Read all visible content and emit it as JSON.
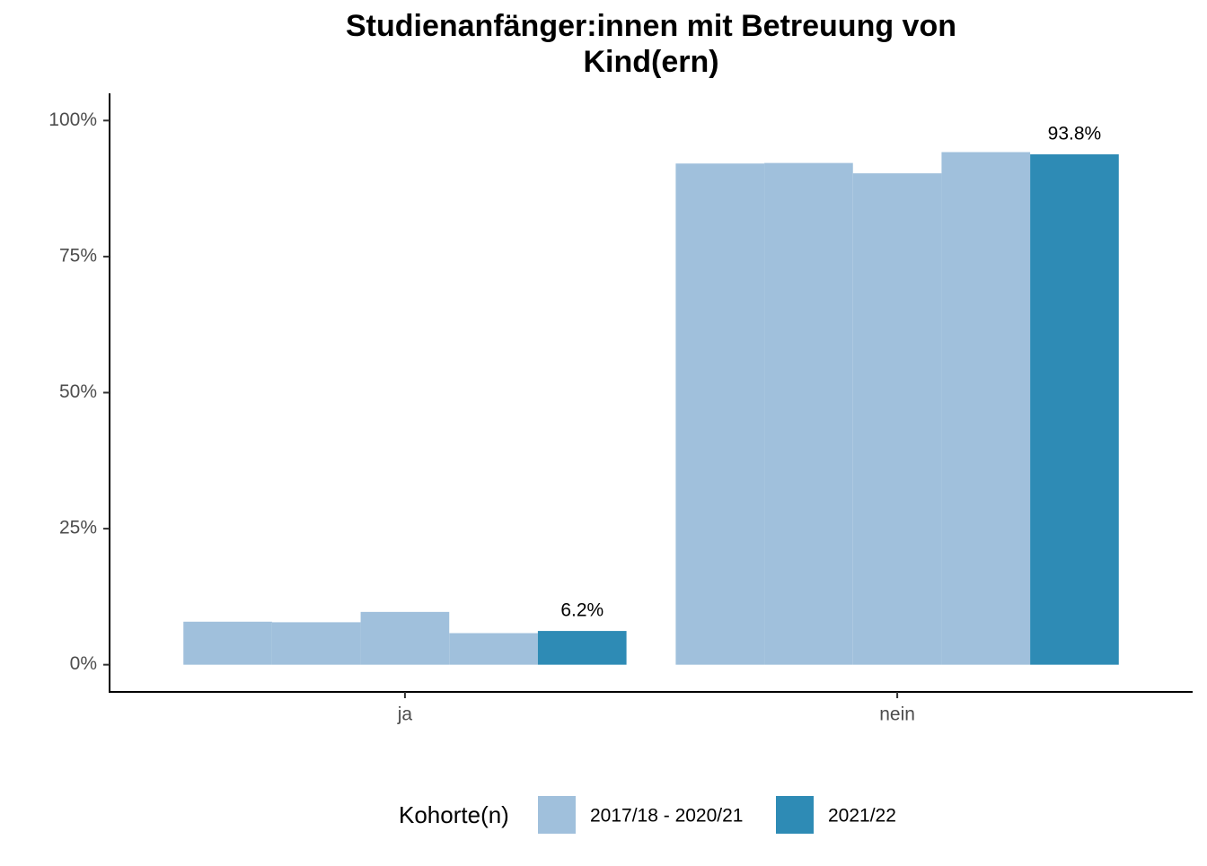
{
  "chart_data": {
    "type": "bar",
    "title": [
      "Studienanfänger:innen mit Betreuung von",
      "Kind(ern)"
    ],
    "categories": [
      "ja",
      "nein"
    ],
    "series": [
      {
        "name": "2017/18 - 2020/21",
        "color": "#a0c0dc",
        "values": [
          [
            7.9,
            7.8,
            9.7,
            5.8
          ],
          [
            92.1,
            92.2,
            90.3,
            94.2
          ]
        ]
      },
      {
        "name": "2021/22",
        "color": "#2e8bb5",
        "values": [
          6.2,
          93.8
        ],
        "value_labels": [
          "6.2%",
          "93.8%"
        ]
      }
    ],
    "legend_title": "Kohorte(n)",
    "legend_position": "bottom",
    "ylim": [
      -5,
      105
    ],
    "yticks": [
      {
        "value": 0,
        "label": "0%"
      },
      {
        "value": 25,
        "label": "25%"
      },
      {
        "value": 50,
        "label": "50%"
      },
      {
        "value": 75,
        "label": "75%"
      },
      {
        "value": 100,
        "label": "100%"
      }
    ],
    "grid": false
  }
}
